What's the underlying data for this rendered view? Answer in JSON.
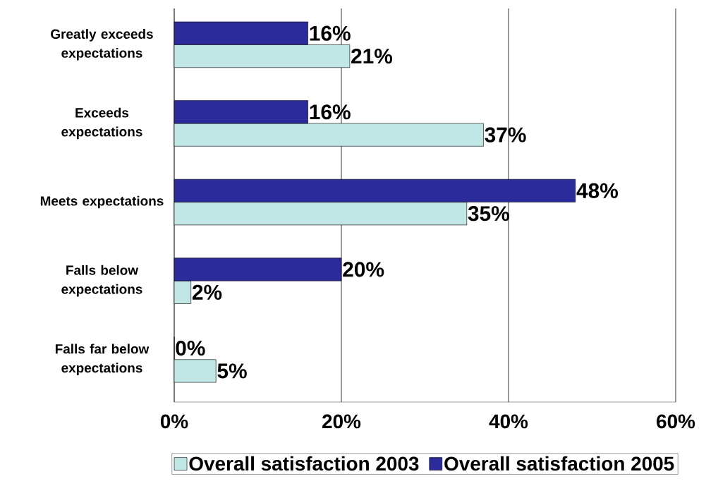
{
  "chart_data": {
    "type": "bar",
    "orientation": "horizontal",
    "categories": [
      "Greatly exceeds expectations",
      "Exceeds expectations",
      "Meets expectations",
      "Falls below expectations",
      "Falls far below expectations"
    ],
    "series": [
      {
        "name": "Overall satisfaction 2003",
        "color": "#c0e6e6",
        "values": [
          21,
          37,
          35,
          2,
          5
        ],
        "value_labels": [
          "21%",
          "37%",
          "35%",
          "2%",
          "5%"
        ]
      },
      {
        "name": "Overall satisfaction 2005",
        "color": "#2b2b9b",
        "values": [
          16,
          16,
          48,
          20,
          0
        ],
        "value_labels": [
          "16%",
          "16%",
          "48%",
          "20%",
          "0%"
        ]
      }
    ],
    "xlim": [
      0,
      60
    ],
    "xticks": [
      {
        "value": 0,
        "label": "0%"
      },
      {
        "value": 20,
        "label": "20%"
      },
      {
        "value": 40,
        "label": "40%"
      },
      {
        "value": 60,
        "label": "60%"
      }
    ],
    "grid": "x",
    "legend": "bottom"
  }
}
